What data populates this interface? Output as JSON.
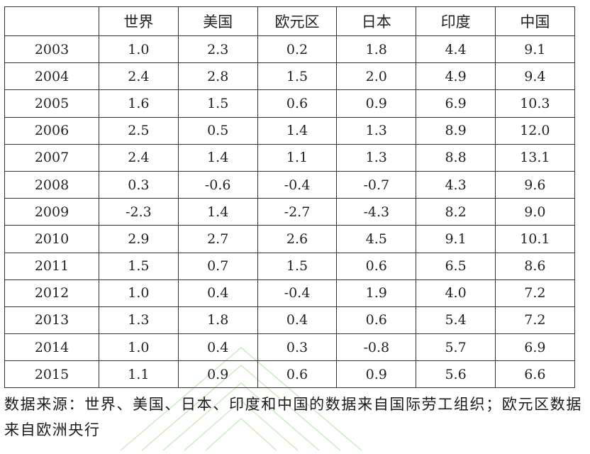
{
  "table": {
    "headers": [
      "",
      "世界",
      "美国",
      "欧元区",
      "日本",
      "印度",
      "中国"
    ],
    "rows": [
      [
        "2003",
        "1.0",
        "2.3",
        "0.2",
        "1.8",
        "4.4",
        "9.1"
      ],
      [
        "2004",
        "2.4",
        "2.8",
        "1.5",
        "2.0",
        "4.9",
        "9.4"
      ],
      [
        "2005",
        "1.6",
        "1.5",
        "0.6",
        "0.9",
        "6.9",
        "10.3"
      ],
      [
        "2006",
        "2.5",
        "0.5",
        "1.4",
        "1.3",
        "8.9",
        "12.0"
      ],
      [
        "2007",
        "2.4",
        "1.4",
        "1.1",
        "1.3",
        "8.8",
        "13.1"
      ],
      [
        "2008",
        "0.3",
        "-0.6",
        "-0.4",
        "-0.7",
        "4.3",
        "9.6"
      ],
      [
        "2009",
        "-2.3",
        "1.4",
        "-2.7",
        "-4.3",
        "8.2",
        "9.0"
      ],
      [
        "2010",
        "2.9",
        "2.7",
        "2.6",
        "4.5",
        "9.1",
        "10.1"
      ],
      [
        "2011",
        "1.5",
        "0.7",
        "1.5",
        "0.6",
        "6.5",
        "8.6"
      ],
      [
        "2012",
        "1.0",
        "0.4",
        "-0.4",
        "1.9",
        "4.0",
        "7.2"
      ],
      [
        "2013",
        "1.3",
        "1.8",
        "0.4",
        "0.6",
        "5.4",
        "7.2"
      ],
      [
        "2014",
        "1.0",
        "0.4",
        "0.3",
        "-0.8",
        "5.7",
        "6.9"
      ],
      [
        "2015",
        "1.1",
        "0.9",
        "0.6",
        "0.9",
        "5.6",
        "6.6"
      ]
    ]
  },
  "source_note": "数据来源：世界、美国、日本、印度和中国的数据来自国际劳工组织；欧元区数据来自欧洲央行",
  "colors": {
    "border": "#333333",
    "text": "#222222",
    "watermark": "#b8e6a8"
  }
}
